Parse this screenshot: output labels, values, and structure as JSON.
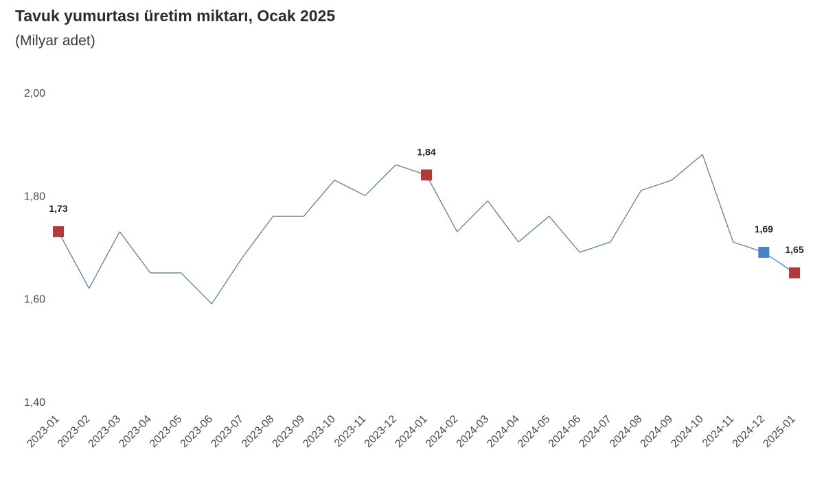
{
  "header": {
    "title": "Tavuk yumurtası üretim miktarı, Ocak 2025",
    "subtitle": "(Milyar adet)"
  },
  "chart_data": {
    "type": "line",
    "title": "Tavuk yumurtası üretim miktarı, Ocak 2025",
    "subtitle": "(Milyar adet)",
    "xlabel": "",
    "ylabel": "",
    "ylim": [
      1.4,
      2.0
    ],
    "yticks": [
      "1,40",
      "1,60",
      "1,80",
      "2,00"
    ],
    "grid": false,
    "line_color": "#5b7f9e",
    "categories": [
      "2023-01",
      "2023-02",
      "2023-03",
      "2023-04",
      "2023-05",
      "2023-06",
      "2023-07",
      "2023-08",
      "2023-09",
      "2023-10",
      "2023-11",
      "2023-12",
      "2024-01",
      "2024-02",
      "2024-03",
      "2024-04",
      "2024-05",
      "2024-06",
      "2024-07",
      "2024-08",
      "2024-09",
      "2024-10",
      "2024-11",
      "2024-12",
      "2025-01"
    ],
    "series": [
      {
        "values": [
          1.73,
          1.62,
          1.73,
          1.65,
          1.65,
          1.59,
          1.68,
          1.76,
          1.76,
          1.83,
          1.8,
          1.86,
          1.84,
          1.73,
          1.79,
          1.71,
          1.76,
          1.69,
          1.71,
          1.81,
          1.83,
          1.88,
          1.71,
          1.69,
          1.65
        ]
      }
    ],
    "highlighted_points": [
      {
        "category": "2023-01",
        "value": 1.73,
        "label": "1,73",
        "color": "#b33a3a"
      },
      {
        "category": "2024-01",
        "value": 1.84,
        "label": "1,84",
        "color": "#b33a3a"
      },
      {
        "category": "2024-12",
        "value": 1.69,
        "label": "1,69",
        "color": "#4a80c9"
      },
      {
        "category": "2025-01",
        "value": 1.65,
        "label": "1,65",
        "color": "#b33a3a"
      }
    ]
  }
}
